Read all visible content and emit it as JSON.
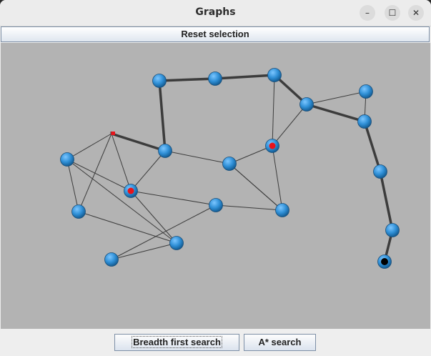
{
  "window": {
    "title": "Graphs",
    "minimize_icon": "minimize-icon",
    "maximize_icon": "maximize-icon",
    "close_icon": "close-icon"
  },
  "toolbar": {
    "reset_label": "Reset selection"
  },
  "actions": {
    "bfs_label": "Breadth first search",
    "astar_label": "A* search"
  },
  "colors": {
    "canvas_bg": "#b3b3b3",
    "node_blue": "#2f8fd6",
    "marker_red": "#e8141b",
    "marker_black": "#000000",
    "edge": "#3c3c3c"
  },
  "graph": {
    "nodes": [
      {
        "id": 0,
        "marker": "none"
      },
      {
        "id": 1,
        "marker": "none"
      },
      {
        "id": 2,
        "marker": "none"
      },
      {
        "id": 3,
        "marker": "none"
      },
      {
        "id": 4,
        "marker": "none"
      },
      {
        "id": 5,
        "marker": "none"
      },
      {
        "id": 6,
        "marker": "flag"
      },
      {
        "id": 7,
        "marker": "none"
      },
      {
        "id": 8,
        "marker": "none"
      },
      {
        "id": 9,
        "marker": "red"
      },
      {
        "id": 10,
        "marker": "red"
      },
      {
        "id": 11,
        "marker": "none"
      },
      {
        "id": 12,
        "marker": "none"
      },
      {
        "id": 13,
        "marker": "none"
      },
      {
        "id": 14,
        "marker": "none"
      },
      {
        "id": 15,
        "marker": "none"
      },
      {
        "id": 16,
        "marker": "none"
      },
      {
        "id": 17,
        "marker": "none"
      },
      {
        "id": 18,
        "marker": "none"
      },
      {
        "id": 19,
        "marker": "none"
      },
      {
        "id": 20,
        "marker": "none"
      },
      {
        "id": 21,
        "marker": "black"
      }
    ],
    "edges": [
      {
        "a": 0,
        "b": 1,
        "path": true
      },
      {
        "a": 1,
        "b": 2,
        "path": true
      },
      {
        "a": 2,
        "b": 3,
        "path": true
      },
      {
        "a": 3,
        "b": 4,
        "path": true
      },
      {
        "a": 4,
        "b": 5,
        "path": false
      },
      {
        "a": 5,
        "b": 3,
        "path": false
      },
      {
        "a": 0,
        "b": 7,
        "path": true
      },
      {
        "a": 6,
        "b": 7,
        "path": true
      },
      {
        "a": 6,
        "b": 8,
        "path": false
      },
      {
        "a": 6,
        "b": 9,
        "path": false
      },
      {
        "a": 6,
        "b": 11,
        "path": false
      },
      {
        "a": 8,
        "b": 11,
        "path": false
      },
      {
        "a": 8,
        "b": 9,
        "path": false
      },
      {
        "a": 8,
        "b": 12,
        "path": false
      },
      {
        "a": 11,
        "b": 12,
        "path": false
      },
      {
        "a": 9,
        "b": 12,
        "path": false
      },
      {
        "a": 9,
        "b": 7,
        "path": false
      },
      {
        "a": 9,
        "b": 14,
        "path": false
      },
      {
        "a": 12,
        "b": 13,
        "path": false
      },
      {
        "a": 13,
        "b": 14,
        "path": false
      },
      {
        "a": 14,
        "b": 15,
        "path": false
      },
      {
        "a": 7,
        "b": 16,
        "path": false
      },
      {
        "a": 16,
        "b": 10,
        "path": false
      },
      {
        "a": 16,
        "b": 15,
        "path": false
      },
      {
        "a": 16,
        "b": 17,
        "path": false
      },
      {
        "a": 10,
        "b": 17,
        "path": false
      },
      {
        "a": 15,
        "b": 17,
        "path": false
      },
      {
        "a": 10,
        "b": 2,
        "path": false
      },
      {
        "a": 10,
        "b": 3,
        "path": false
      },
      {
        "a": 4,
        "b": 18,
        "path": true
      },
      {
        "a": 18,
        "b": 19,
        "path": true
      },
      {
        "a": 19,
        "b": 20,
        "path": true
      },
      {
        "a": 20,
        "b": 21,
        "path": true
      }
    ]
  }
}
